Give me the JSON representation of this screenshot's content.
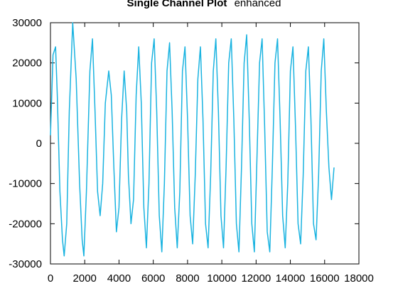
{
  "chart_data": {
    "type": "line",
    "title": "Single Channel Plot",
    "subtitle": "enhanced",
    "xlabel": "",
    "ylabel": "",
    "xlim": [
      0,
      18000
    ],
    "ylim": [
      -30000,
      30000
    ],
    "x_ticks": [
      0,
      2000,
      4000,
      6000,
      8000,
      10000,
      12000,
      14000,
      16000,
      18000
    ],
    "y_ticks": [
      -30000,
      -20000,
      -10000,
      0,
      10000,
      20000,
      30000
    ],
    "grid": false,
    "legend": "none",
    "line_color": "#1ab3e0",
    "series": [
      {
        "x": [
          0,
          150,
          300,
          400,
          550,
          700,
          800,
          950,
          1100,
          1300,
          1500,
          1700,
          1850,
          1950,
          2100,
          2300,
          2450,
          2600,
          2750,
          2900,
          3050,
          3200,
          3400,
          3550,
          3700,
          3850,
          4000,
          4150,
          4300,
          4450,
          4550,
          4700,
          4850,
          5000,
          5150,
          5300,
          5450,
          5600,
          5750,
          5900,
          6050,
          6200,
          6350,
          6500,
          6650,
          6800,
          6950,
          7100,
          7250,
          7400,
          7550,
          7700,
          7850,
          8000,
          8150,
          8300,
          8450,
          8600,
          8750,
          8900,
          9050,
          9200,
          9350,
          9500,
          9650,
          9800,
          9950,
          10100,
          10250,
          10400,
          10550,
          10700,
          10850,
          11000,
          11150,
          11300,
          11450,
          11600,
          11750,
          11900,
          12050,
          12200,
          12350,
          12500,
          12650,
          12800,
          12950,
          13100,
          13250,
          13400,
          13550,
          13700,
          13850,
          14000,
          14150,
          14300,
          14450,
          14600,
          14750,
          14900,
          15050,
          15200,
          15350,
          15500,
          15650,
          15800,
          15950,
          16100,
          16250,
          16400,
          16550
        ],
        "values": [
          2000,
          22000,
          24000,
          12000,
          -12000,
          -24000,
          -28000,
          -20000,
          8000,
          30000,
          16000,
          -10000,
          -24000,
          -28000,
          -12000,
          18000,
          26000,
          8000,
          -12000,
          -18000,
          -10000,
          10000,
          18000,
          12000,
          -6000,
          -22000,
          -16000,
          6000,
          18000,
          8000,
          -8000,
          -20000,
          -14000,
          12000,
          24000,
          10000,
          -16000,
          -26000,
          -10000,
          20000,
          26000,
          8000,
          -18000,
          -27000,
          -10000,
          18000,
          25000,
          8000,
          -16000,
          -26000,
          -12000,
          18000,
          24000,
          6000,
          -18000,
          -25000,
          -8000,
          16000,
          24000,
          6000,
          -20000,
          -26000,
          -8000,
          18000,
          26000,
          8000,
          -18000,
          -26000,
          -6000,
          20000,
          26000,
          6000,
          -20000,
          -27000,
          -6000,
          20000,
          27000,
          6000,
          -20000,
          -27000,
          -4000,
          20000,
          26000,
          4000,
          -22000,
          -27000,
          -6000,
          20000,
          26000,
          6000,
          -18000,
          -26000,
          -10000,
          18000,
          24000,
          4000,
          -20000,
          -25000,
          -8000,
          18000,
          24000,
          6000,
          -20000,
          -24000,
          -8000,
          18000,
          26000,
          8000,
          -6000,
          -14000,
          -6000
        ]
      }
    ]
  }
}
